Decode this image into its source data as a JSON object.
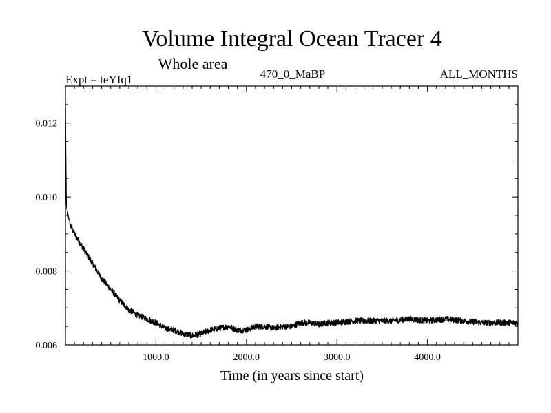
{
  "chart_data": {
    "type": "line",
    "title": "Volume Integral Ocean Tracer 4",
    "subtitle": "Whole area",
    "experiment": "Expt = teYIq1",
    "period": "470_0_MaBP",
    "months": "ALL_MONTHS",
    "xlabel": "Time (in years since start)",
    "ylabel": "",
    "xlim": [
      0,
      5000
    ],
    "ylim": [
      0.006,
      0.013
    ],
    "x_ticks": [
      1000,
      2000,
      3000,
      4000
    ],
    "x_tick_labels": [
      "1000.0",
      "2000.0",
      "3000.0",
      "4000.0"
    ],
    "y_ticks": [
      0.006,
      0.008,
      0.01,
      0.012
    ],
    "y_tick_labels": [
      "0.006",
      "0.008",
      "0.010",
      "0.012"
    ],
    "grid": false,
    "noise_amplitude": 8e-05,
    "series": [
      {
        "name": "Volume Integral Ocean Tracer 4",
        "color": "#000000",
        "x": [
          0,
          5,
          10,
          20,
          40,
          60,
          100,
          150,
          200,
          300,
          400,
          500,
          600,
          700,
          800,
          900,
          1000,
          1100,
          1200,
          1300,
          1400,
          1500,
          1600,
          1700,
          1800,
          1900,
          2000,
          2100,
          2200,
          2300,
          2400,
          2500,
          2600,
          2700,
          2800,
          2900,
          3000,
          3200,
          3400,
          3600,
          3800,
          4000,
          4200,
          4400,
          4600,
          4800,
          5000
        ],
        "y": [
          0.0124,
          0.011,
          0.0098,
          0.0096,
          0.0094,
          0.0092,
          0.009,
          0.0088,
          0.0086,
          0.0082,
          0.0078,
          0.0075,
          0.0072,
          0.00695,
          0.0068,
          0.0067,
          0.0066,
          0.00645,
          0.0064,
          0.0063,
          0.00625,
          0.0063,
          0.0064,
          0.00645,
          0.0065,
          0.0064,
          0.0064,
          0.0065,
          0.0065,
          0.00645,
          0.0065,
          0.0065,
          0.0066,
          0.0066,
          0.00655,
          0.0066,
          0.0066,
          0.00665,
          0.00665,
          0.00665,
          0.0067,
          0.00665,
          0.0067,
          0.00665,
          0.0066,
          0.0066,
          0.0066
        ]
      }
    ]
  }
}
